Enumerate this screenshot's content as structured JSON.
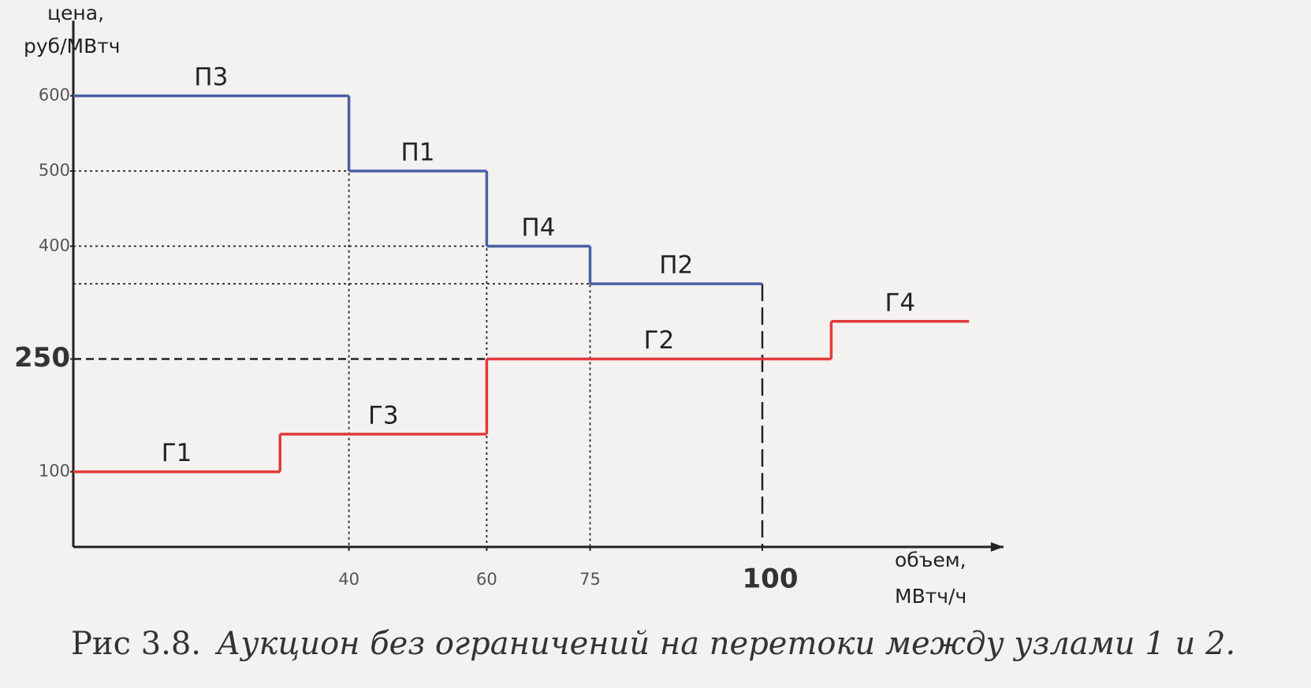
{
  "chart_data": {
    "type": "step",
    "y_label": [
      "цена,",
      "руб/МВтч"
    ],
    "x_label": [
      "объем,",
      "МВтч/ч"
    ],
    "xlim": [
      0,
      135
    ],
    "ylim": [
      0,
      700
    ],
    "xticks": [
      40,
      60,
      75,
      100
    ],
    "yticks": [
      100,
      250,
      400,
      500,
      600
    ],
    "clearing": {
      "price": 250,
      "volume": 100
    },
    "series": [
      {
        "color": "#4a5fa8",
        "bins": [
          0,
          40,
          60,
          75,
          100
        ],
        "values": [
          600,
          500,
          400,
          350
        ],
        "labels": [
          "П3",
          "П1",
          "П4",
          "П2"
        ]
      },
      {
        "color": "#e03a3a",
        "bins": [
          0,
          30,
          60,
          110,
          130
        ],
        "values": [
          100,
          150,
          250,
          300
        ],
        "labels": [
          "Г1",
          "Г3",
          "Г2",
          "Г4"
        ]
      }
    ],
    "figure_number": "Рис 3.8.",
    "caption": "Аукцион без ограничений на перетоки между узлами 1 и 2."
  }
}
